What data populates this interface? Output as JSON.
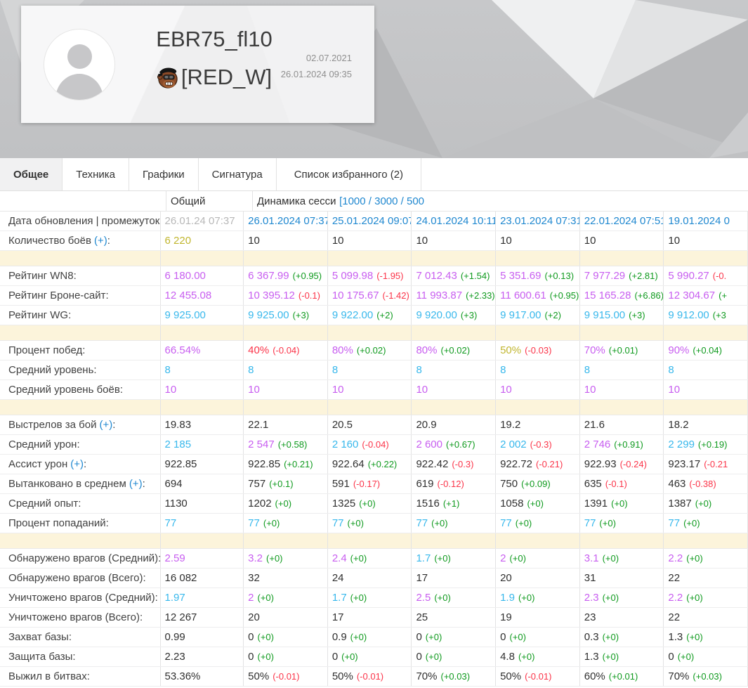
{
  "profile": {
    "name": "EBR75_fl10",
    "clan": "[RED_W]",
    "registered": "02.07.2021",
    "last_update": "26.01.2024 09:35"
  },
  "tabs": [
    {
      "label": "Общее",
      "active": true
    },
    {
      "label": "Техника",
      "active": false
    },
    {
      "label": "Графики",
      "active": false
    },
    {
      "label": "Сигнатура",
      "active": false
    },
    {
      "label": "Список избранного (2)",
      "active": false
    }
  ],
  "colors": {
    "magenta": "#c85ef0",
    "cyan": "#38b8ec",
    "green": "#0f9a1e",
    "red": "#fb3449",
    "yellow": "#c1b62f",
    "blue": "#2088d0",
    "gray": "#b8b8b8"
  },
  "table": {
    "col_general": "Общий",
    "dynamics_label": "Динамика сесси",
    "dynamics_link": "[1000 / 3000 / 500",
    "rows": [
      {
        "l": "Дата обновления | промежуток",
        "cells": [
          {
            "v": "26.01.24 07:37",
            "vc": "gray"
          },
          {
            "v": "26.01.2024 07:37",
            "vc": "link",
            "link": true
          },
          {
            "v": "25.01.2024 09:07",
            "vc": "link",
            "link": true
          },
          {
            "v": "24.01.2024 10:11",
            "vc": "link",
            "link": true
          },
          {
            "v": "23.01.2024 07:31",
            "vc": "link",
            "link": true
          },
          {
            "v": "22.01.2024 07:51",
            "vc": "link",
            "link": true
          },
          {
            "v": "19.01.2024 0",
            "vc": "link",
            "link": true
          }
        ]
      },
      {
        "l": "Количество боёв",
        "p": true,
        "cells": [
          {
            "v": "6 220",
            "vc": "yellow"
          },
          {
            "v": "10"
          },
          {
            "v": "10"
          },
          {
            "v": "10"
          },
          {
            "v": "10"
          },
          {
            "v": "10"
          },
          {
            "v": "10"
          }
        ]
      },
      {
        "spacer": true
      },
      {
        "l": "Рейтинг WN8",
        "cells": [
          {
            "v": "6 180.00",
            "vc": "magenta"
          },
          {
            "v": "6 367.99",
            "vc": "magenta",
            "d": "(+0.95)",
            "dc": "green"
          },
          {
            "v": "5 099.98",
            "vc": "magenta",
            "d": "(-1.95)",
            "dc": "red"
          },
          {
            "v": "7 012.43",
            "vc": "magenta",
            "d": "(+1.54)",
            "dc": "green"
          },
          {
            "v": "5 351.69",
            "vc": "magenta",
            "d": "(+0.13)",
            "dc": "green"
          },
          {
            "v": "7 977.29",
            "vc": "magenta",
            "d": "(+2.81)",
            "dc": "green"
          },
          {
            "v": "5 990.27",
            "vc": "magenta",
            "d": "(-0.",
            "dc": "red"
          }
        ]
      },
      {
        "l": "Рейтинг Броне-сайт",
        "cells": [
          {
            "v": "12 455.08",
            "vc": "magenta"
          },
          {
            "v": "10 395.12",
            "vc": "magenta",
            "d": "(-0.1)",
            "dc": "red"
          },
          {
            "v": "10 175.67",
            "vc": "magenta",
            "d": "(-1.42)",
            "dc": "red"
          },
          {
            "v": "11 993.87",
            "vc": "magenta",
            "d": "(+2.33)",
            "dc": "green"
          },
          {
            "v": "11 600.61",
            "vc": "magenta",
            "d": "(+0.95)",
            "dc": "green"
          },
          {
            "v": "15 165.28",
            "vc": "magenta",
            "d": "(+6.86)",
            "dc": "green"
          },
          {
            "v": "12 304.67",
            "vc": "magenta",
            "d": "(+",
            "dc": "green"
          }
        ]
      },
      {
        "l": "Рейтинг WG",
        "cells": [
          {
            "v": "9 925.00",
            "vc": "cyan"
          },
          {
            "v": "9 925.00",
            "vc": "cyan",
            "d": "(+3)",
            "dc": "green"
          },
          {
            "v": "9 922.00",
            "vc": "cyan",
            "d": "(+2)",
            "dc": "green"
          },
          {
            "v": "9 920.00",
            "vc": "cyan",
            "d": "(+3)",
            "dc": "green"
          },
          {
            "v": "9 917.00",
            "vc": "cyan",
            "d": "(+2)",
            "dc": "green"
          },
          {
            "v": "9 915.00",
            "vc": "cyan",
            "d": "(+3)",
            "dc": "green"
          },
          {
            "v": "9 912.00",
            "vc": "cyan",
            "d": "(+3",
            "dc": "green"
          }
        ]
      },
      {
        "spacer": true
      },
      {
        "l": "Процент побед",
        "cells": [
          {
            "v": "66.54%",
            "vc": "magenta"
          },
          {
            "v": "40%",
            "vc": "red",
            "d": "(-0.04)",
            "dc": "red"
          },
          {
            "v": "80%",
            "vc": "magenta",
            "d": "(+0.02)",
            "dc": "green"
          },
          {
            "v": "80%",
            "vc": "magenta",
            "d": "(+0.02)",
            "dc": "green"
          },
          {
            "v": "50%",
            "vc": "yellow",
            "d": "(-0.03)",
            "dc": "red"
          },
          {
            "v": "70%",
            "vc": "magenta",
            "d": "(+0.01)",
            "dc": "green"
          },
          {
            "v": "90%",
            "vc": "magenta",
            "d": "(+0.04)",
            "dc": "green"
          }
        ]
      },
      {
        "l": "Средний уровень",
        "cells": [
          {
            "v": "8",
            "vc": "cyan"
          },
          {
            "v": "8",
            "vc": "cyan"
          },
          {
            "v": "8",
            "vc": "cyan"
          },
          {
            "v": "8",
            "vc": "cyan"
          },
          {
            "v": "8",
            "vc": "cyan"
          },
          {
            "v": "8",
            "vc": "cyan"
          },
          {
            "v": "8",
            "vc": "cyan"
          }
        ]
      },
      {
        "l": "Средний уровень боёв",
        "cells": [
          {
            "v": "10",
            "vc": "magenta"
          },
          {
            "v": "10",
            "vc": "magenta"
          },
          {
            "v": "10",
            "vc": "magenta"
          },
          {
            "v": "10",
            "vc": "magenta"
          },
          {
            "v": "10",
            "vc": "magenta"
          },
          {
            "v": "10",
            "vc": "magenta"
          },
          {
            "v": "10",
            "vc": "magenta"
          }
        ]
      },
      {
        "spacer": true
      },
      {
        "l": "Выстрелов за бой",
        "p": true,
        "cells": [
          {
            "v": "19.83"
          },
          {
            "v": "22.1"
          },
          {
            "v": "20.5"
          },
          {
            "v": "20.9"
          },
          {
            "v": "19.2"
          },
          {
            "v": "21.6"
          },
          {
            "v": "18.2"
          }
        ]
      },
      {
        "l": "Средний урон",
        "cells": [
          {
            "v": "2 185",
            "vc": "cyan"
          },
          {
            "v": "2 547",
            "vc": "magenta",
            "d": "(+0.58)",
            "dc": "green"
          },
          {
            "v": "2 160",
            "vc": "cyan",
            "d": "(-0.04)",
            "dc": "red"
          },
          {
            "v": "2 600",
            "vc": "magenta",
            "d": "(+0.67)",
            "dc": "green"
          },
          {
            "v": "2 002",
            "vc": "cyan",
            "d": "(-0.3)",
            "dc": "red"
          },
          {
            "v": "2 746",
            "vc": "magenta",
            "d": "(+0.91)",
            "dc": "green"
          },
          {
            "v": "2 299",
            "vc": "cyan",
            "d": "(+0.19)",
            "dc": "green"
          }
        ]
      },
      {
        "l": "Ассист урон",
        "p": true,
        "cells": [
          {
            "v": "922.85"
          },
          {
            "v": "922.85",
            "d": "(+0.21)",
            "dc": "green"
          },
          {
            "v": "922.64",
            "d": "(+0.22)",
            "dc": "green"
          },
          {
            "v": "922.42",
            "d": "(-0.3)",
            "dc": "red"
          },
          {
            "v": "922.72",
            "d": "(-0.21)",
            "dc": "red"
          },
          {
            "v": "922.93",
            "d": "(-0.24)",
            "dc": "red"
          },
          {
            "v": "923.17",
            "d": "(-0.21",
            "dc": "red"
          }
        ]
      },
      {
        "l": "Вытанковано в среднем",
        "p": true,
        "cells": [
          {
            "v": "694"
          },
          {
            "v": "757",
            "d": "(+0.1)",
            "dc": "green"
          },
          {
            "v": "591",
            "d": "(-0.17)",
            "dc": "red"
          },
          {
            "v": "619",
            "d": "(-0.12)",
            "dc": "red"
          },
          {
            "v": "750",
            "d": "(+0.09)",
            "dc": "green"
          },
          {
            "v": "635",
            "d": "(-0.1)",
            "dc": "red"
          },
          {
            "v": "463",
            "d": "(-0.38)",
            "dc": "red"
          }
        ]
      },
      {
        "l": "Средний опыт",
        "cells": [
          {
            "v": "1130"
          },
          {
            "v": "1202",
            "d": "(+0)",
            "dc": "green"
          },
          {
            "v": "1325",
            "d": "(+0)",
            "dc": "green"
          },
          {
            "v": "1516",
            "d": "(+1)",
            "dc": "green"
          },
          {
            "v": "1058",
            "d": "(+0)",
            "dc": "green"
          },
          {
            "v": "1391",
            "d": "(+0)",
            "dc": "green"
          },
          {
            "v": "1387",
            "d": "(+0)",
            "dc": "green"
          }
        ]
      },
      {
        "l": "Процент попаданий",
        "cells": [
          {
            "v": "77",
            "vc": "cyan"
          },
          {
            "v": "77",
            "vc": "cyan",
            "d": "(+0)",
            "dc": "green"
          },
          {
            "v": "77",
            "vc": "cyan",
            "d": "(+0)",
            "dc": "green"
          },
          {
            "v": "77",
            "vc": "cyan",
            "d": "(+0)",
            "dc": "green"
          },
          {
            "v": "77",
            "vc": "cyan",
            "d": "(+0)",
            "dc": "green"
          },
          {
            "v": "77",
            "vc": "cyan",
            "d": "(+0)",
            "dc": "green"
          },
          {
            "v": "77",
            "vc": "cyan",
            "d": "(+0)",
            "dc": "green"
          }
        ]
      },
      {
        "spacer": true
      },
      {
        "l": "Обнаружено врагов (Средний)",
        "cells": [
          {
            "v": "2.59",
            "vc": "magenta"
          },
          {
            "v": "3.2",
            "vc": "magenta",
            "d": "(+0)",
            "dc": "green"
          },
          {
            "v": "2.4",
            "vc": "magenta",
            "d": "(+0)",
            "dc": "green"
          },
          {
            "v": "1.7",
            "vc": "cyan",
            "d": "(+0)",
            "dc": "green"
          },
          {
            "v": "2",
            "vc": "magenta",
            "d": "(+0)",
            "dc": "green"
          },
          {
            "v": "3.1",
            "vc": "magenta",
            "d": "(+0)",
            "dc": "green"
          },
          {
            "v": "2.2",
            "vc": "magenta",
            "d": "(+0)",
            "dc": "green"
          }
        ]
      },
      {
        "l": "Обнаружено врагов (Всего)",
        "cells": [
          {
            "v": "16 082"
          },
          {
            "v": "32"
          },
          {
            "v": "24"
          },
          {
            "v": "17"
          },
          {
            "v": "20"
          },
          {
            "v": "31"
          },
          {
            "v": "22"
          }
        ]
      },
      {
        "l": "Уничтожено врагов (Средний)",
        "cells": [
          {
            "v": "1.97",
            "vc": "cyan"
          },
          {
            "v": "2",
            "vc": "magenta",
            "d": "(+0)",
            "dc": "green"
          },
          {
            "v": "1.7",
            "vc": "cyan",
            "d": "(+0)",
            "dc": "green"
          },
          {
            "v": "2.5",
            "vc": "magenta",
            "d": "(+0)",
            "dc": "green"
          },
          {
            "v": "1.9",
            "vc": "cyan",
            "d": "(+0)",
            "dc": "green"
          },
          {
            "v": "2.3",
            "vc": "magenta",
            "d": "(+0)",
            "dc": "green"
          },
          {
            "v": "2.2",
            "vc": "magenta",
            "d": "(+0)",
            "dc": "green"
          }
        ]
      },
      {
        "l": "Уничтожено врагов (Всего)",
        "cells": [
          {
            "v": "12 267"
          },
          {
            "v": "20"
          },
          {
            "v": "17"
          },
          {
            "v": "25"
          },
          {
            "v": "19"
          },
          {
            "v": "23"
          },
          {
            "v": "22"
          }
        ]
      },
      {
        "l": "Захват базы",
        "cells": [
          {
            "v": "0.99"
          },
          {
            "v": "0",
            "d": "(+0)",
            "dc": "green"
          },
          {
            "v": "0.9",
            "d": "(+0)",
            "dc": "green"
          },
          {
            "v": "0",
            "d": "(+0)",
            "dc": "green"
          },
          {
            "v": "0",
            "d": "(+0)",
            "dc": "green"
          },
          {
            "v": "0.3",
            "d": "(+0)",
            "dc": "green"
          },
          {
            "v": "1.3",
            "d": "(+0)",
            "dc": "green"
          }
        ]
      },
      {
        "l": "Защита базы",
        "cells": [
          {
            "v": "2.23"
          },
          {
            "v": "0",
            "d": "(+0)",
            "dc": "green"
          },
          {
            "v": "0",
            "d": "(+0)",
            "dc": "green"
          },
          {
            "v": "0",
            "d": "(+0)",
            "dc": "green"
          },
          {
            "v": "4.8",
            "d": "(+0)",
            "dc": "green"
          },
          {
            "v": "1.3",
            "d": "(+0)",
            "dc": "green"
          },
          {
            "v": "0",
            "d": "(+0)",
            "dc": "green"
          }
        ]
      },
      {
        "l": "Выжил в битвах",
        "cells": [
          {
            "v": "53.36%"
          },
          {
            "v": "50%",
            "d": "(-0.01)",
            "dc": "red"
          },
          {
            "v": "50%",
            "d": "(-0.01)",
            "dc": "red"
          },
          {
            "v": "70%",
            "d": "(+0.03)",
            "dc": "green"
          },
          {
            "v": "50%",
            "d": "(-0.01)",
            "dc": "red"
          },
          {
            "v": "60%",
            "d": "(+0.01)",
            "dc": "green"
          },
          {
            "v": "70%",
            "d": "(+0.03)",
            "dc": "green"
          }
        ]
      }
    ]
  }
}
